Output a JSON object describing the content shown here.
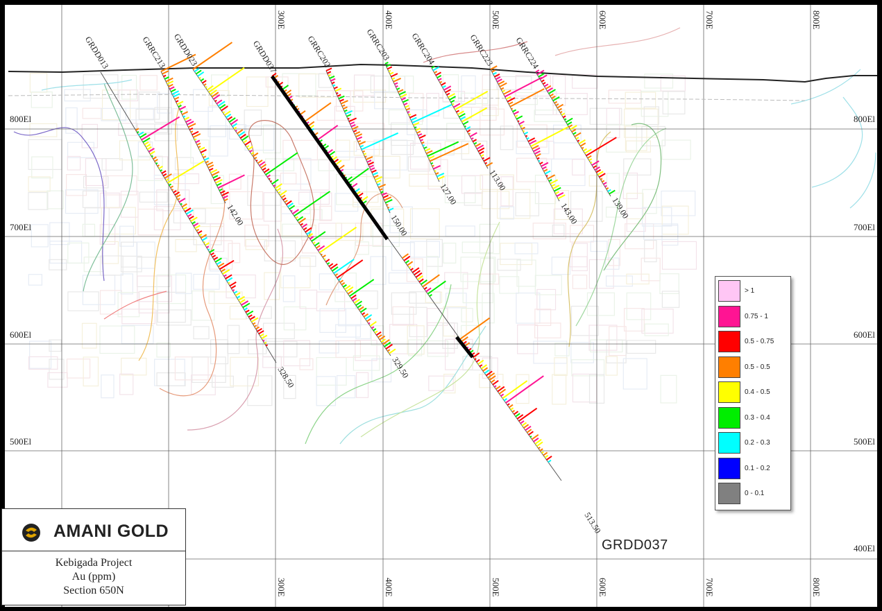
{
  "company": {
    "name": "AMANI GOLD"
  },
  "info": {
    "project": "Kebigada Project",
    "units": "Au (ppm)",
    "section": "Section 650N"
  },
  "section_hole_label": "GRDD037",
  "elevation_labels": [
    "800El",
    "700El",
    "600El",
    "500El",
    "400El"
  ],
  "easting_labels": [
    "300E",
    "400E",
    "500E",
    "600E",
    "700E",
    "800E"
  ],
  "legend": {
    "title": "Au (ppm)",
    "items": [
      {
        "label": "> 1",
        "color": "#ffc6f5"
      },
      {
        "label": "0.75 - 1",
        "color": "#ff1493"
      },
      {
        "label": "0.5 - 0.75",
        "color": "#ff0000"
      },
      {
        "label": "0.5 - 0.5",
        "color": "#ff7f00"
      },
      {
        "label": "0.4 - 0.5",
        "color": "#ffff00"
      },
      {
        "label": "0.3 - 0.4",
        "color": "#00ee00"
      },
      {
        "label": "0.2 - 0.3",
        "color": "#00ffff"
      },
      {
        "label": "0.1 - 0.2",
        "color": "#0000ff"
      },
      {
        "label": "0 - 0.1",
        "color": "#808080"
      }
    ]
  },
  "drillholes": [
    {
      "name": "GRDD013",
      "depth": "328.50"
    },
    {
      "name": "GRRC213",
      "depth": "142.00"
    },
    {
      "name": "GRDD023",
      "depth": "329.50"
    },
    {
      "name": "GRDD037",
      "depth": "513.50"
    },
    {
      "name": "GRRC202",
      "depth": "150.00"
    },
    {
      "name": "GRRC203",
      "depth": "127.00"
    },
    {
      "name": "GRRC204",
      "depth": "113.00"
    },
    {
      "name": "GRRC223",
      "depth": "143.00"
    },
    {
      "name": "GRRC224",
      "depth": "139.00"
    }
  ]
}
